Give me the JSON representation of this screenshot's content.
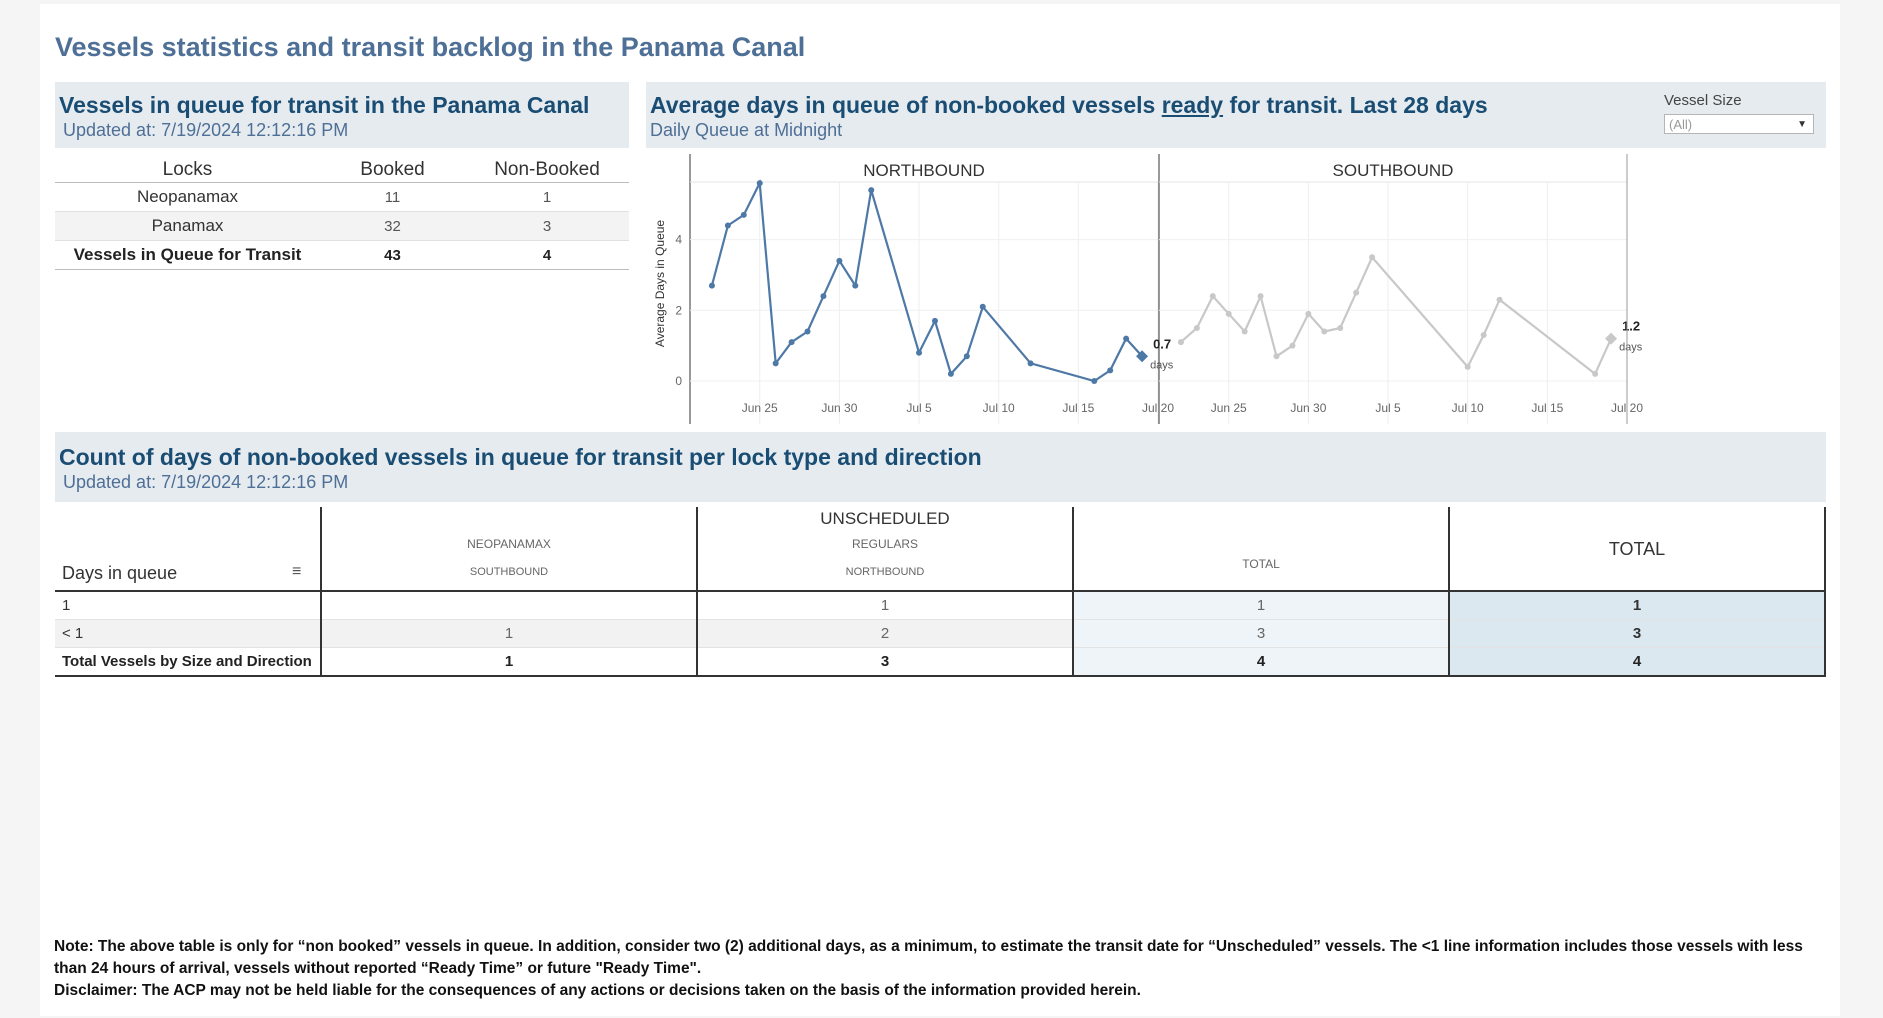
{
  "page": {
    "title": "Vessels statistics and transit backlog in the Panama Canal"
  },
  "queue_panel": {
    "title": "Vessels in queue for transit in the Panama Canal",
    "updated": "Updated at:  7/19/2024 12:12:16 PM",
    "columns": [
      "Locks",
      "Booked",
      "Non-Booked"
    ],
    "rows": [
      {
        "lock": "Neopanamax",
        "booked": "11",
        "non_booked": "1"
      },
      {
        "lock": "Panamax",
        "booked": "32",
        "non_booked": "3"
      }
    ],
    "total": {
      "lock": "Vessels in Queue for Transit",
      "booked": "43",
      "non_booked": "4"
    }
  },
  "avg_panel": {
    "title_pre": "Average days in queue of non-booked vessels ",
    "title_link": "ready",
    "title_post": " for transit. Last 28 days",
    "subtitle": "Daily Queue at Midnight",
    "filter": {
      "label": "Vessel Size",
      "value": "(All)"
    }
  },
  "count_panel": {
    "title": "Count of days of non-booked vessels in queue for transit per lock type and direction",
    "updated": "Updated at:  7/19/2024 12:12:16 PM",
    "header_main": "UNSCHEDULED",
    "header_neo": "NEOPANAMAX",
    "header_reg": "REGULARS",
    "header_south": "SOUTHBOUND",
    "header_north": "NORTHBOUND",
    "header_total_small": "TOTAL",
    "header_total_big": "TOTAL",
    "row_header": "Days in queue",
    "rows": [
      {
        "label": "1",
        "neo_south": "",
        "reg_north": "1",
        "total": "1",
        "grand": "1"
      },
      {
        "label": "< 1",
        "neo_south": "1",
        "reg_north": "2",
        "total": "3",
        "grand": "3"
      }
    ],
    "total_row": {
      "label": "Total Vessels by Size and Direction",
      "neo_south": "1",
      "reg_north": "3",
      "total": "4",
      "grand": "4"
    }
  },
  "note": {
    "line1": "Note:  The above table is only for “non booked” vessels in queue. In addition, consider two (2) additional days, as a minimum, to estimate the transit date for “Unscheduled” vessels.  The <1 line information includes those vessels with less than 24 hours of arrival, vessels without reported “Ready Time” or future \"Ready Time\".",
    "line2": "Disclaimer: The ACP may not be held liable for the consequences of any actions or decisions taken on the basis of the information provided herein."
  },
  "chart_data": {
    "type": "line",
    "ylabel": "Average Days in Queue",
    "ylim": [
      0,
      5.8
    ],
    "yticks": [
      0,
      2,
      4
    ],
    "x_range": [
      "2024-06-21",
      "2024-07-20"
    ],
    "xticks": [
      "Jun 25",
      "Jun 30",
      "Jul 5",
      "Jul 10",
      "Jul 15",
      "Jul 20"
    ],
    "panels": [
      {
        "name": "NORTHBOUND",
        "color": "#4e79a7",
        "points": [
          [
            "2024-06-22",
            2.7
          ],
          [
            "2024-06-23",
            4.4
          ],
          [
            "2024-06-24",
            4.7
          ],
          [
            "2024-06-25",
            5.6
          ],
          [
            "2024-06-26",
            0.5
          ],
          [
            "2024-06-27",
            1.1
          ],
          [
            "2024-06-28",
            1.4
          ],
          [
            "2024-06-29",
            2.4
          ],
          [
            "2024-06-30",
            3.4
          ],
          [
            "2024-07-01",
            2.7
          ],
          [
            "2024-07-02",
            5.4
          ],
          [
            "2024-07-05",
            0.8
          ],
          [
            "2024-07-06",
            1.7
          ],
          [
            "2024-07-07",
            0.2
          ],
          [
            "2024-07-08",
            0.7
          ],
          [
            "2024-07-09",
            2.1
          ],
          [
            "2024-07-12",
            0.5
          ],
          [
            "2024-07-16",
            0.0
          ],
          [
            "2024-07-17",
            0.3
          ],
          [
            "2024-07-18",
            1.2
          ],
          [
            "2024-07-19",
            0.7
          ]
        ],
        "last_label": "0.7",
        "unit": "days"
      },
      {
        "name": "SOUTHBOUND",
        "color": "#c8c8c8",
        "points": [
          [
            "2024-06-22",
            1.1
          ],
          [
            "2024-06-23",
            1.5
          ],
          [
            "2024-06-24",
            2.4
          ],
          [
            "2024-06-25",
            1.9
          ],
          [
            "2024-06-26",
            1.4
          ],
          [
            "2024-06-27",
            2.4
          ],
          [
            "2024-06-28",
            0.7
          ],
          [
            "2024-06-29",
            1.0
          ],
          [
            "2024-06-30",
            1.9
          ],
          [
            "2024-07-01",
            1.4
          ],
          [
            "2024-07-02",
            1.5
          ],
          [
            "2024-07-03",
            2.5
          ],
          [
            "2024-07-04",
            3.5
          ],
          [
            "2024-07-10",
            0.4
          ],
          [
            "2024-07-11",
            1.3
          ],
          [
            "2024-07-12",
            2.3
          ],
          [
            "2024-07-18",
            0.2
          ],
          [
            "2024-07-19",
            1.2
          ]
        ],
        "last_label": "1.2",
        "unit": "days"
      }
    ]
  }
}
